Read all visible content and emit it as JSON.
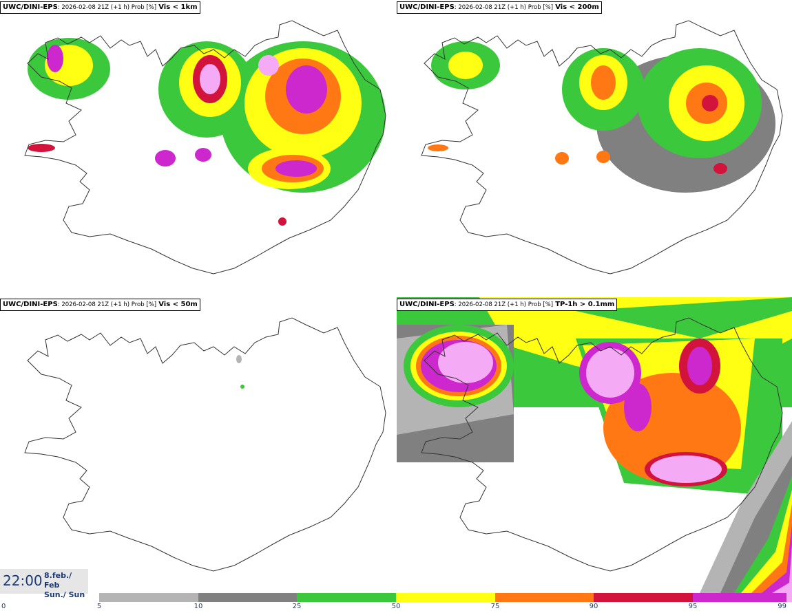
{
  "panels": [
    {
      "model": "UWC/DINI-EPS",
      "meta": ": 2026-02-08 21Z (+1 h) Prob [%]",
      "param": "Vis < 1km"
    },
    {
      "model": "UWC/DINI-EPS",
      "meta": ": 2026-02-08 21Z (+1 h) Prob [%]",
      "param": "Vis < 200m"
    },
    {
      "model": "UWC/DINI-EPS",
      "meta": ": 2026-02-08 21Z (+1 h) Prob [%]",
      "param": "Vis < 50m"
    },
    {
      "model": "UWC/DINI-EPS",
      "meta": ": 2026-02-08 21Z (+1 h) Prob [%]",
      "param": "TP-1h > 0.1mm"
    }
  ],
  "valid_time": {
    "time": "22:00",
    "date_line1": "8.feb./ Feb",
    "date_line2": "Sun./ Sun"
  },
  "colorbar": {
    "ticks": [
      "0",
      "5",
      "10",
      "25",
      "50",
      "75",
      "90",
      "95",
      "99"
    ],
    "colors": [
      "#ffffff",
      "#b4b4b4",
      "#808080",
      "#3cc83c",
      "#ffff14",
      "#ff7814",
      "#d2143c",
      "#cd28cd",
      "#f5aaf5"
    ]
  }
}
